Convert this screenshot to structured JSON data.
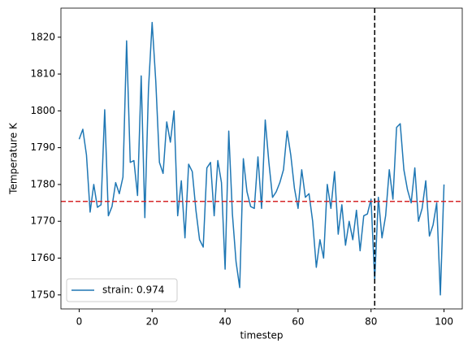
{
  "chart_data": {
    "type": "line",
    "xlabel": "timestep",
    "ylabel": "Temperature K",
    "x": [
      0,
      1,
      2,
      3,
      4,
      5,
      6,
      7,
      8,
      9,
      10,
      11,
      12,
      13,
      14,
      15,
      16,
      17,
      18,
      19,
      20,
      21,
      22,
      23,
      24,
      25,
      26,
      27,
      28,
      29,
      30,
      31,
      32,
      33,
      34,
      35,
      36,
      37,
      38,
      39,
      40,
      41,
      42,
      43,
      44,
      45,
      46,
      47,
      48,
      49,
      50,
      51,
      52,
      53,
      54,
      55,
      56,
      57,
      58,
      59,
      60,
      61,
      62,
      63,
      64,
      65,
      66,
      67,
      68,
      69,
      70,
      71,
      72,
      73,
      74,
      75,
      76,
      77,
      78,
      79,
      80,
      81,
      82,
      83,
      84,
      85,
      86,
      87,
      88,
      89,
      90,
      91,
      92,
      93,
      94,
      95,
      96,
      97,
      98,
      99,
      100
    ],
    "series": [
      {
        "name": "strain: 0.974",
        "color": "#1f77b4",
        "values": [
          1792.3,
          1795,
          1788,
          1772.5,
          1780,
          1773.8,
          1774.5,
          1800.3,
          1771.5,
          1774,
          1780.5,
          1777.5,
          1782,
          1819,
          1786,
          1786.5,
          1777,
          1809.5,
          1771,
          1806,
          1824,
          1808,
          1786,
          1783,
          1797,
          1791.5,
          1800,
          1771.5,
          1781,
          1765.5,
          1785.5,
          1783.5,
          1773,
          1765,
          1763,
          1784.5,
          1786,
          1771.5,
          1786.5,
          1780.5,
          1757,
          1794.5,
          1772,
          1759,
          1752,
          1787,
          1778,
          1774,
          1773.5,
          1787.5,
          1773.5,
          1797.5,
          1786,
          1776.5,
          1778,
          1780.5,
          1784,
          1794.5,
          1788,
          1779,
          1773.5,
          1784,
          1776.5,
          1777.5,
          1770,
          1757.5,
          1765,
          1760,
          1780,
          1773.5,
          1783.5,
          1766.5,
          1774.5,
          1763.5,
          1770,
          1765,
          1773,
          1762,
          1771.5,
          1772,
          1776,
          1754,
          1776.5,
          1765.5,
          1771.5,
          1784,
          1776,
          1795.5,
          1796.5,
          1784,
          1778.5,
          1775,
          1784.5,
          1770,
          1773.5,
          1781,
          1766,
          1769,
          1775,
          1750,
          1780
        ]
      }
    ],
    "hline": {
      "value": 1775.4,
      "color": "#d62728"
    },
    "vline": {
      "value": 81,
      "color": "#000000"
    },
    "xlim": [
      -5,
      105
    ],
    "xticks": [
      0,
      20,
      40,
      60,
      80,
      100
    ],
    "ylim": [
      1746.2,
      1827.9
    ],
    "yticks": [
      1750,
      1760,
      1770,
      1780,
      1790,
      1800,
      1810,
      1820
    ],
    "legend": "lower left"
  }
}
